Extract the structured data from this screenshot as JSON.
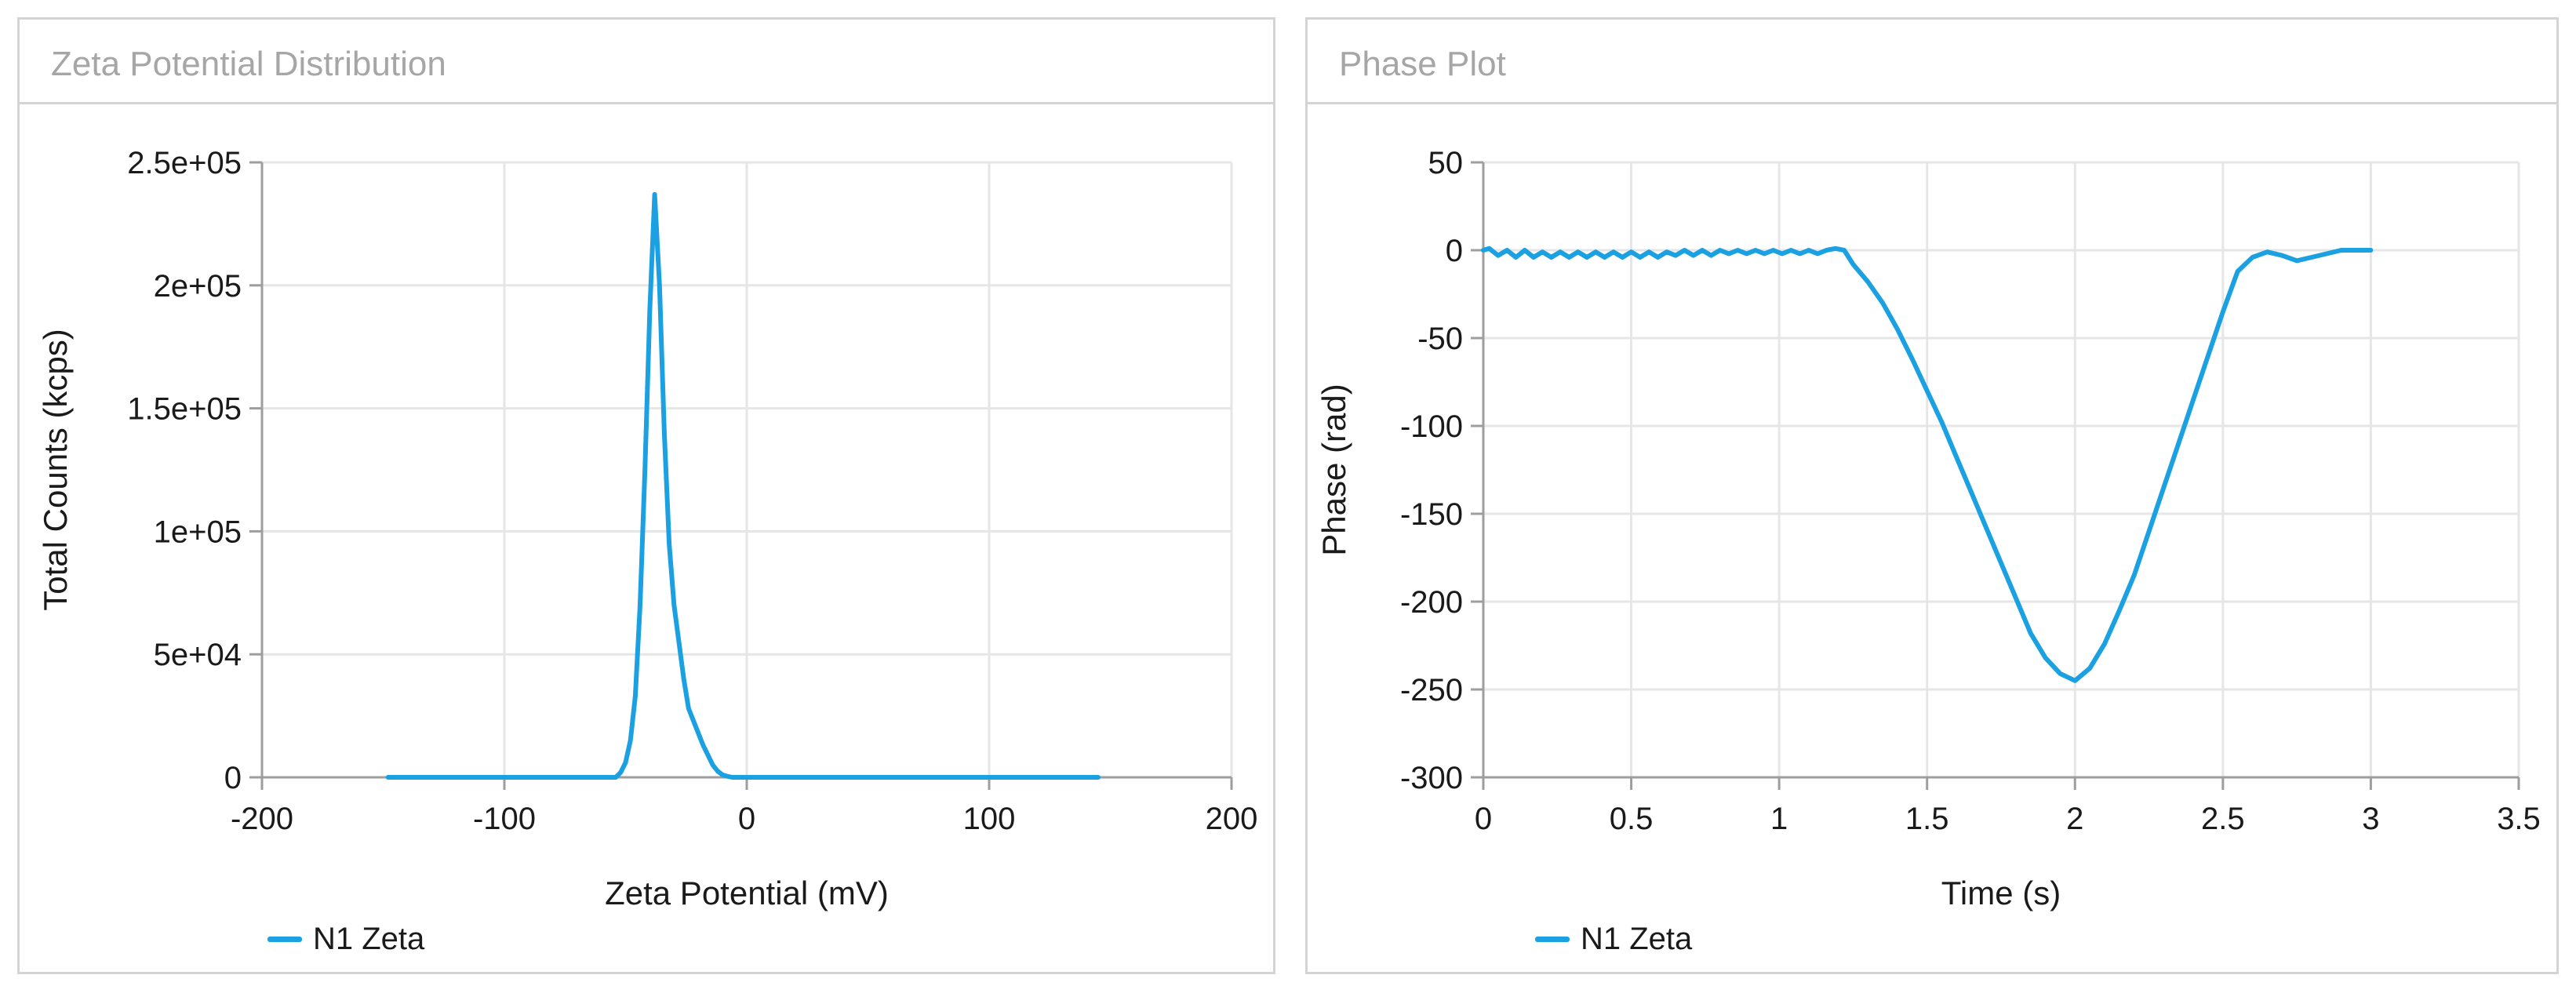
{
  "chart_data": [
    {
      "id": "zeta",
      "type": "line",
      "title": "Zeta Potential Distribution",
      "xlabel": "Zeta Potential (mV)",
      "ylabel": "Total Counts (kcps)",
      "xlim": [
        -200,
        200
      ],
      "ylim": [
        0,
        250000
      ],
      "xticks": [
        -200,
        -100,
        0,
        100,
        200
      ],
      "xtick_labels": [
        "-200",
        "-100",
        "0",
        "100",
        "200"
      ],
      "yticks": [
        0,
        50000,
        100000,
        150000,
        200000,
        250000
      ],
      "ytick_labels": [
        "0",
        "5e+04",
        "1e+05",
        "1.5e+05",
        "2e+05",
        "2.5e+05"
      ],
      "grid": true,
      "legend": "bottom-left",
      "series": [
        {
          "name": "N1 Zeta",
          "color": "#1ba1e2",
          "x": [
            -148,
            -100,
            -60,
            -54,
            -52,
            -50,
            -48,
            -46,
            -44,
            -42,
            -40,
            -38,
            -36,
            -34,
            -32,
            -30,
            -28,
            -26,
            -24,
            -22,
            -20,
            -18,
            -16,
            -14,
            -12,
            -10,
            -8,
            -6,
            -4,
            0,
            50,
            100,
            145
          ],
          "y": [
            0,
            0,
            0,
            0,
            2000,
            6000,
            15000,
            33000,
            70000,
            125000,
            190000,
            237000,
            200000,
            140000,
            95000,
            70000,
            55000,
            40000,
            28000,
            23000,
            18000,
            13000,
            9000,
            5000,
            2500,
            1000,
            400,
            0,
            0,
            0,
            0,
            0,
            0
          ]
        }
      ]
    },
    {
      "id": "phase",
      "type": "line",
      "title": "Phase Plot",
      "xlabel": "Time (s)",
      "ylabel": "Phase (rad)",
      "xlim": [
        0,
        3.5
      ],
      "ylim": [
        -300,
        50
      ],
      "xticks": [
        0,
        0.5,
        1,
        1.5,
        2,
        2.5,
        3,
        3.5
      ],
      "xtick_labels": [
        "0",
        "0.5",
        "1",
        "1.5",
        "2",
        "2.5",
        "3",
        "3.5"
      ],
      "yticks": [
        -300,
        -250,
        -200,
        -150,
        -100,
        -50,
        0,
        50
      ],
      "ytick_labels": [
        "-300",
        "-250",
        "-200",
        "-150",
        "-100",
        "-50",
        "0",
        "50"
      ],
      "grid": true,
      "legend": "bottom-left",
      "series": [
        {
          "name": "N1 Zeta",
          "color": "#1ba1e2",
          "x": [
            0,
            0.02,
            0.05,
            0.08,
            0.11,
            0.14,
            0.17,
            0.2,
            0.23,
            0.26,
            0.29,
            0.32,
            0.35,
            0.38,
            0.41,
            0.44,
            0.47,
            0.5,
            0.53,
            0.56,
            0.59,
            0.62,
            0.65,
            0.68,
            0.71,
            0.74,
            0.77,
            0.8,
            0.83,
            0.86,
            0.89,
            0.92,
            0.95,
            0.98,
            1.01,
            1.04,
            1.07,
            1.1,
            1.13,
            1.16,
            1.19,
            1.22,
            1.25,
            1.3,
            1.35,
            1.4,
            1.45,
            1.5,
            1.55,
            1.6,
            1.65,
            1.7,
            1.75,
            1.8,
            1.85,
            1.9,
            1.95,
            2.0,
            2.05,
            2.1,
            2.15,
            2.2,
            2.25,
            2.3,
            2.35,
            2.4,
            2.45,
            2.5,
            2.55,
            2.6,
            2.65,
            2.7,
            2.75,
            2.8,
            2.85,
            2.9,
            2.95,
            3.0
          ],
          "y": [
            0,
            1,
            -3,
            0,
            -4,
            0,
            -4,
            -1,
            -4,
            -1,
            -4,
            -1,
            -4,
            -1,
            -4,
            -1,
            -4,
            -1,
            -4,
            -1,
            -4,
            -1,
            -3,
            0,
            -3,
            0,
            -3,
            0,
            -2,
            0,
            -2,
            0,
            -2,
            0,
            -2,
            0,
            -2,
            0,
            -2,
            0,
            1,
            0,
            -8,
            -18,
            -30,
            -45,
            -62,
            -80,
            -98,
            -118,
            -138,
            -158,
            -178,
            -198,
            -218,
            -232,
            -241,
            -245,
            -238,
            -224,
            -205,
            -185,
            -160,
            -135,
            -110,
            -85,
            -60,
            -35,
            -12,
            -4,
            -1,
            -3,
            -6,
            -4,
            -2,
            0,
            0,
            0
          ]
        }
      ]
    }
  ]
}
